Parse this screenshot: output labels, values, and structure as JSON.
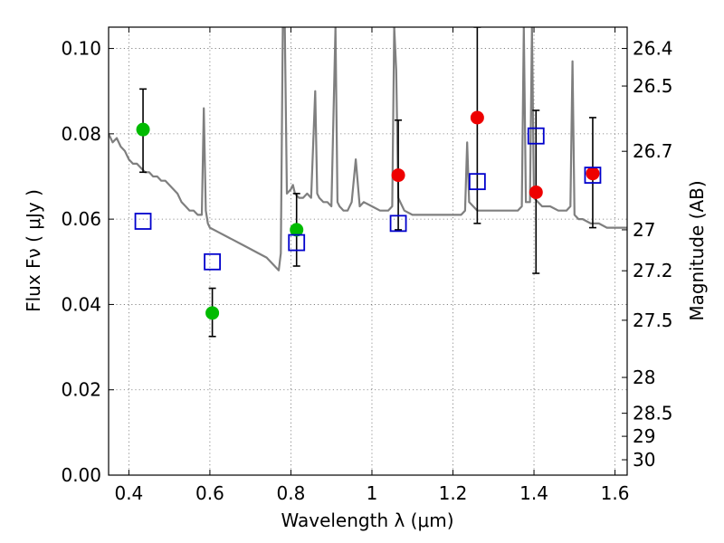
{
  "chart_data": {
    "type": "scatter",
    "xlabel": "Wavelength  λ (μm)",
    "ylabel": "Flux  Fν  ( μJy )",
    "ylabel_right": "Magnitude (AB)",
    "xlim": [
      0.35,
      1.63
    ],
    "ylim": [
      0.0,
      0.105
    ],
    "grid": true,
    "x_ticks": [
      0.4,
      0.6,
      0.8,
      1.0,
      1.2,
      1.4,
      1.6
    ],
    "x_tick_labels": [
      "0.4",
      "0.6",
      "0.8",
      "1",
      "1.2",
      "1.4",
      "1.6"
    ],
    "y_ticks": [
      0.0,
      0.02,
      0.04,
      0.06,
      0.08,
      0.1
    ],
    "y_tick_labels": [
      "0.00",
      "0.02",
      "0.04",
      "0.06",
      "0.08",
      "0.10"
    ],
    "right_ticks": [
      {
        "label": "26.4",
        "flux": 0.1
      },
      {
        "label": "26.5",
        "flux": 0.0912
      },
      {
        "label": "26.7",
        "flux": 0.0759
      },
      {
        "label": "27",
        "flux": 0.0575
      },
      {
        "label": "27.2",
        "flux": 0.0479
      },
      {
        "label": "27.5",
        "flux": 0.0363
      },
      {
        "label": "28",
        "flux": 0.0229
      },
      {
        "label": "28.5",
        "flux": 0.0145
      },
      {
        "label": "29",
        "flux": 0.0091
      },
      {
        "label": "30",
        "flux": 0.0036
      }
    ],
    "colors": {
      "green": "#00bb00",
      "red": "#ee0000",
      "model": "#0000cc",
      "spectrum": "#7f7f7f",
      "errorbar": "#000000"
    },
    "series": [
      {
        "marker": "green-circle",
        "x": [
          0.435,
          0.606,
          0.814
        ],
        "y": [
          0.081,
          0.038,
          0.0575
        ],
        "yerr_low": [
          0.071,
          0.0325,
          0.049
        ],
        "yerr_high": [
          0.0905,
          0.0438,
          0.066
        ]
      },
      {
        "marker": "red-circle",
        "x": [
          1.065,
          1.26,
          1.405,
          1.545
        ],
        "y": [
          0.0703,
          0.0838,
          0.0663,
          0.0707
        ],
        "yerr_low": [
          0.0575,
          0.059,
          0.0473,
          0.058
        ],
        "yerr_high": [
          0.0832,
          0.105,
          0.0855,
          0.0838
        ]
      },
      {
        "marker": "blue-open-square",
        "x": [
          0.435,
          0.606,
          0.814,
          1.065,
          1.26,
          1.405,
          1.545
        ],
        "y": [
          0.0595,
          0.05,
          0.0545,
          0.059,
          0.0688,
          0.0795,
          0.0703
        ]
      }
    ],
    "spectrum": {
      "x": [
        0.35,
        0.36,
        0.37,
        0.38,
        0.39,
        0.4,
        0.41,
        0.42,
        0.43,
        0.44,
        0.45,
        0.46,
        0.47,
        0.48,
        0.49,
        0.5,
        0.51,
        0.52,
        0.53,
        0.54,
        0.55,
        0.56,
        0.57,
        0.58,
        0.585,
        0.59,
        0.595,
        0.6,
        0.62,
        0.64,
        0.66,
        0.68,
        0.7,
        0.72,
        0.74,
        0.76,
        0.77,
        0.775,
        0.78,
        0.785,
        0.79,
        0.8,
        0.805,
        0.81,
        0.82,
        0.83,
        0.84,
        0.85,
        0.86,
        0.865,
        0.87,
        0.88,
        0.89,
        0.9,
        0.91,
        0.915,
        0.92,
        0.93,
        0.94,
        0.95,
        0.96,
        0.97,
        0.98,
        1.0,
        1.02,
        1.04,
        1.05,
        1.055,
        1.06,
        1.065,
        1.07,
        1.08,
        1.1,
        1.12,
        1.14,
        1.16,
        1.18,
        1.2,
        1.22,
        1.23,
        1.235,
        1.24,
        1.25,
        1.26,
        1.28,
        1.3,
        1.32,
        1.34,
        1.36,
        1.37,
        1.375,
        1.38,
        1.39,
        1.395,
        1.4,
        1.42,
        1.44,
        1.46,
        1.48,
        1.49,
        1.495,
        1.5,
        1.51,
        1.52,
        1.54,
        1.56,
        1.58,
        1.6,
        1.63
      ],
      "y": [
        0.08,
        0.078,
        0.079,
        0.077,
        0.076,
        0.074,
        0.073,
        0.073,
        0.072,
        0.071,
        0.071,
        0.07,
        0.07,
        0.069,
        0.069,
        0.068,
        0.067,
        0.066,
        0.064,
        0.063,
        0.062,
        0.062,
        0.061,
        0.061,
        0.086,
        0.062,
        0.059,
        0.058,
        0.057,
        0.056,
        0.055,
        0.054,
        0.053,
        0.052,
        0.051,
        0.049,
        0.048,
        0.052,
        0.105,
        0.105,
        0.066,
        0.067,
        0.068,
        0.066,
        0.065,
        0.065,
        0.066,
        0.065,
        0.09,
        0.066,
        0.065,
        0.064,
        0.064,
        0.063,
        0.105,
        0.064,
        0.063,
        0.062,
        0.062,
        0.064,
        0.074,
        0.063,
        0.064,
        0.063,
        0.062,
        0.062,
        0.063,
        0.105,
        0.095,
        0.065,
        0.064,
        0.062,
        0.061,
        0.061,
        0.061,
        0.061,
        0.061,
        0.061,
        0.061,
        0.062,
        0.078,
        0.064,
        0.063,
        0.062,
        0.062,
        0.062,
        0.062,
        0.062,
        0.062,
        0.063,
        0.105,
        0.064,
        0.064,
        0.105,
        0.065,
        0.063,
        0.063,
        0.062,
        0.062,
        0.063,
        0.097,
        0.061,
        0.06,
        0.06,
        0.059,
        0.059,
        0.058,
        0.058,
        0.058
      ]
    }
  }
}
